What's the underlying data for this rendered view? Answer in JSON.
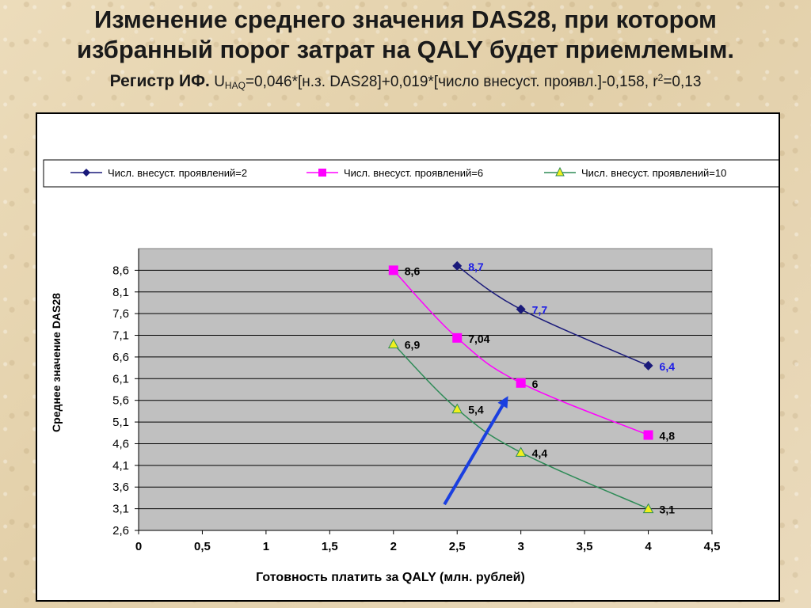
{
  "title": {
    "line1": "Изменение среднего значения DAS28, при котором",
    "line2": "избранный порог затрат на QALY будет приемлемым.",
    "registry_label": "Регистр ИФ.",
    "formula_u": "U",
    "formula_sub": "HAQ",
    "formula_main": "=0,046*[н.з. DAS28]+0,019*[число внесуст. проявл.]-0,158, r",
    "formula_sup": "2",
    "formula_tail": "=0,13"
  },
  "colors": {
    "series_2": "#1a1a7a",
    "series_6": "#ff00ff",
    "series_10": "#2e8b57",
    "marker_10_fill": "#f0f01e",
    "plot_bg": "#c0c0c0",
    "label_blue": "#1e1ee6",
    "arrow": "#1a3fe0"
  },
  "chart_data": {
    "type": "line",
    "xlabel": "Готовность платить за QALY (млн. рублей)",
    "ylabel": "Среднее значение DAS28",
    "xlim": [
      0,
      4.5
    ],
    "ylim": [
      2.6,
      9.1
    ],
    "xticks": [
      "0",
      "0,5",
      "1",
      "1,5",
      "2",
      "2,5",
      "3",
      "3,5",
      "4",
      "4,5"
    ],
    "yticks": [
      "2,6",
      "3,1",
      "3,6",
      "4,1",
      "4,6",
      "5,1",
      "5,6",
      "6,1",
      "6,6",
      "7,1",
      "7,6",
      "8,1",
      "8,6"
    ],
    "grid": true,
    "legend_position": "top",
    "series": [
      {
        "name": "Числ. внесуст. проявлений=2",
        "marker": "diamond",
        "x": [
          2.5,
          3,
          4
        ],
        "y": [
          8.7,
          7.7,
          6.4
        ],
        "labels": [
          "8,7",
          "7,7",
          "6,4"
        ]
      },
      {
        "name": "Числ. внесуст. проявлений=6",
        "marker": "square",
        "x": [
          2,
          2.5,
          3,
          4
        ],
        "y": [
          8.6,
          7.04,
          6.0,
          4.8
        ],
        "labels": [
          "8,6",
          "7,04",
          "6",
          "4,8"
        ]
      },
      {
        "name": "Числ. внесуст. проявлений=10",
        "marker": "triangle",
        "x": [
          2,
          2.5,
          3,
          4
        ],
        "y": [
          6.9,
          5.4,
          4.4,
          3.1
        ],
        "labels": [
          "6,9",
          "5,4",
          "4,4",
          "3,1"
        ]
      }
    ],
    "annotations": [
      {
        "type": "arrow",
        "from": [
          2.4,
          3.2
        ],
        "to": [
          2.9,
          5.7
        ]
      }
    ]
  }
}
